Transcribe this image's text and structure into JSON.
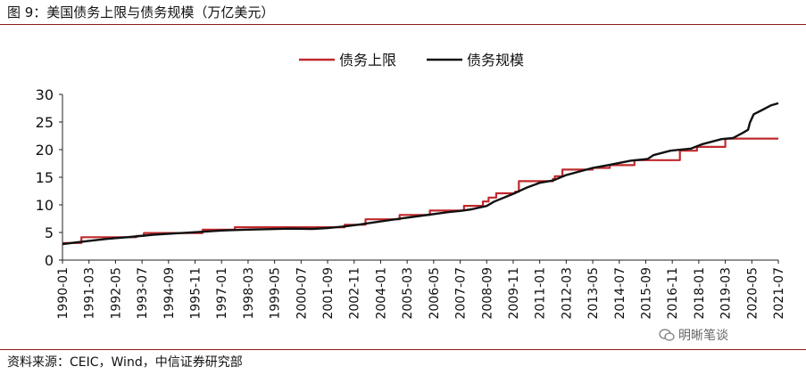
{
  "header": {
    "title": "图 9：美国债务上限与债务规模（万亿美元）"
  },
  "footer": {
    "source": "资料来源：CEIC，Wind，中信证券研究部"
  },
  "watermark": {
    "text": "明晰笔谈",
    "icon": "wechat-icon"
  },
  "chart_data": {
    "type": "line",
    "title": "",
    "xlabel": "",
    "ylabel": "",
    "ylim": [
      0,
      30
    ],
    "yticks": [
      0,
      5,
      10,
      15,
      20,
      25,
      30
    ],
    "xlim": [
      "1990-01",
      "2021-07"
    ],
    "xtick_labels": [
      "1990-01",
      "1991-03",
      "1992-05",
      "1993-07",
      "1994-09",
      "1995-11",
      "1997-01",
      "1998-03",
      "1999-05",
      "2000-07",
      "2001-09",
      "2002-11",
      "2004-01",
      "2005-03",
      "2006-05",
      "2007-07",
      "2008-09",
      "2009-11",
      "2011-01",
      "2012-03",
      "2013-05",
      "2014-07",
      "2015-09",
      "2016-11",
      "2018-01",
      "2019-03",
      "2020-05",
      "2021-07"
    ],
    "legend": {
      "placement": "top-center"
    },
    "grid": false,
    "series": [
      {
        "name": "债务上限",
        "color": "#c0282d",
        "step": true,
        "points": [
          [
            "1990-01",
            3.1
          ],
          [
            "1990-11",
            4.15
          ],
          [
            "1993-04",
            4.37
          ],
          [
            "1993-08",
            4.9
          ],
          [
            "1996-03",
            5.5
          ],
          [
            "1997-08",
            5.95
          ],
          [
            "2002-06",
            6.4
          ],
          [
            "2003-05",
            7.38
          ],
          [
            "2004-11",
            8.18
          ],
          [
            "2006-03",
            8.97
          ],
          [
            "2007-09",
            9.82
          ],
          [
            "2008-07",
            10.62
          ],
          [
            "2008-10",
            11.32
          ],
          [
            "2009-02",
            12.1
          ],
          [
            "2009-12",
            12.39
          ],
          [
            "2010-02",
            14.29
          ],
          [
            "2011-08",
            14.69
          ],
          [
            "2011-09",
            15.19
          ],
          [
            "2012-01",
            16.39
          ],
          [
            "2013-05",
            16.7
          ],
          [
            "2014-02",
            17.2
          ],
          [
            "2015-03",
            18.1
          ],
          [
            "2017-03",
            19.8
          ],
          [
            "2017-12",
            20.5
          ],
          [
            "2019-03",
            22.0
          ],
          [
            "2021-07",
            22.0
          ]
        ]
      },
      {
        "name": "债务规模",
        "color": "#111111",
        "step": false,
        "points": [
          [
            "1990-01",
            2.9
          ],
          [
            "1991-01",
            3.4
          ],
          [
            "1992-01",
            3.85
          ],
          [
            "1993-01",
            4.2
          ],
          [
            "1994-01",
            4.6
          ],
          [
            "1995-01",
            4.85
          ],
          [
            "1996-01",
            5.1
          ],
          [
            "1997-01",
            5.35
          ],
          [
            "1998-01",
            5.5
          ],
          [
            "1999-01",
            5.6
          ],
          [
            "2000-01",
            5.7
          ],
          [
            "2001-01",
            5.65
          ],
          [
            "2001-09",
            5.8
          ],
          [
            "2002-06",
            6.1
          ],
          [
            "2003-01",
            6.4
          ],
          [
            "2004-01",
            7.0
          ],
          [
            "2005-01",
            7.6
          ],
          [
            "2006-01",
            8.15
          ],
          [
            "2007-01",
            8.7
          ],
          [
            "2007-07",
            8.9
          ],
          [
            "2008-01",
            9.2
          ],
          [
            "2008-09",
            9.8
          ],
          [
            "2009-01",
            10.6
          ],
          [
            "2009-11",
            12.0
          ],
          [
            "2010-06",
            13.1
          ],
          [
            "2011-01",
            14.0
          ],
          [
            "2011-08",
            14.4
          ],
          [
            "2012-03",
            15.4
          ],
          [
            "2013-05",
            16.7
          ],
          [
            "2014-01",
            17.2
          ],
          [
            "2015-01",
            18.0
          ],
          [
            "2015-10",
            18.3
          ],
          [
            "2016-01",
            19.0
          ],
          [
            "2016-10",
            19.8
          ],
          [
            "2017-09",
            20.2
          ],
          [
            "2018-03",
            21.0
          ],
          [
            "2019-01",
            21.9
          ],
          [
            "2019-07",
            22.1
          ],
          [
            "2019-12",
            23.0
          ],
          [
            "2020-03",
            23.6
          ],
          [
            "2020-04",
            24.9
          ],
          [
            "2020-06",
            26.4
          ],
          [
            "2020-10",
            27.1
          ],
          [
            "2021-03",
            28.0
          ],
          [
            "2021-07",
            28.4
          ]
        ]
      }
    ]
  }
}
